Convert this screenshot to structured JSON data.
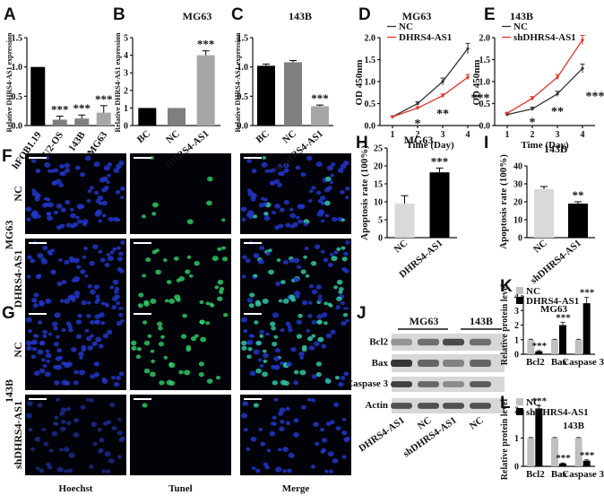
{
  "panels": {
    "A": {
      "letter": "A",
      "chart_data": {
        "type": "bar",
        "title": "",
        "ylabel": "Relative DHRS4-AS1 expression",
        "categories": [
          "hFOB1.19",
          "U2-OS",
          "143B",
          "MG63"
        ],
        "values": [
          1.0,
          0.1,
          0.12,
          0.22
        ],
        "errors": [
          0.0,
          0.06,
          0.06,
          0.12
        ],
        "ylim": [
          0,
          1.5
        ],
        "yticks": [
          "0.0",
          "0.5",
          "1.0",
          "1.5"
        ],
        "colors": [
          "#000000",
          "#7f7f7f",
          "#7f7f7f",
          "#a6a6a6"
        ],
        "sig": [
          "",
          "***",
          "***",
          "***"
        ]
      }
    },
    "B": {
      "letter": "B",
      "chart_data": {
        "type": "bar",
        "title": "MG63",
        "ylabel": "Relative DHRS4-AS1 expression",
        "categories": [
          "BC",
          "NC",
          "DHRS4-AS1"
        ],
        "values": [
          1.0,
          1.0,
          4.0
        ],
        "errors": [
          0.0,
          0.0,
          0.25
        ],
        "ylim": [
          0,
          5
        ],
        "yticks": [
          "0",
          "1",
          "2",
          "3",
          "4",
          "5"
        ],
        "colors": [
          "#000000",
          "#7f7f7f",
          "#a6a6a6"
        ],
        "sig": [
          "",
          "",
          "***"
        ]
      }
    },
    "C": {
      "letter": "C",
      "chart_data": {
        "type": "bar",
        "title": "143B",
        "ylabel": "Relative DHRS4-AS1 expression",
        "categories": [
          "BC",
          "NC",
          "shDHRS4-AS1"
        ],
        "values": [
          1.02,
          1.08,
          0.33
        ],
        "errors": [
          0.03,
          0.03,
          0.02
        ],
        "ylim": [
          0,
          1.5
        ],
        "yticks": [
          "0.0",
          "0.5",
          "1.0",
          "1.5"
        ],
        "colors": [
          "#000000",
          "#7f7f7f",
          "#a6a6a6"
        ],
        "sig": [
          "",
          "",
          "***"
        ]
      }
    },
    "D": {
      "letter": "D",
      "chart_data": {
        "type": "line",
        "title": "MG63",
        "xlabel": "Time (Day)",
        "ylabel": "OD 450nm",
        "x": [
          1,
          2,
          3,
          4
        ],
        "xlim": [
          0.5,
          4.5
        ],
        "ylim": [
          0,
          2
        ],
        "xticks": [
          "1",
          "2",
          "3",
          "4"
        ],
        "yticks": [
          "0.0",
          "0.5",
          "1.0",
          "1.5",
          "2.0"
        ],
        "series": [
          {
            "name": "NC",
            "color": "#333333",
            "values": [
              0.2,
              0.5,
              1.0,
              1.75
            ],
            "errors": [
              0.02,
              0.04,
              0.08,
              0.12
            ]
          },
          {
            "name": "DHRS4-AS1",
            "color": "#e8312a",
            "values": [
              0.2,
              0.4,
              0.68,
              1.1
            ],
            "errors": [
              0.02,
              0.03,
              0.04,
              0.06
            ]
          }
        ],
        "sig": [
          {
            "x": 2,
            "y": 0.12,
            "text": "*"
          },
          {
            "x": 3,
            "y": 0.35,
            "text": "**"
          },
          {
            "x": 4,
            "y": 0.7,
            "text": "***"
          }
        ]
      }
    },
    "E": {
      "letter": "E",
      "chart_data": {
        "type": "line",
        "title": "143B",
        "xlabel": "Time (Day)",
        "ylabel": "OD 450nm",
        "x": [
          1,
          2,
          3,
          4
        ],
        "xlim": [
          0.5,
          4.5
        ],
        "ylim": [
          0,
          2
        ],
        "xticks": [
          "1",
          "2",
          "3",
          "4"
        ],
        "yticks": [
          "0.0",
          "0.5",
          "1.0",
          "1.5",
          "2.0"
        ],
        "series": [
          {
            "name": "NC",
            "color": "#333333",
            "values": [
              0.25,
              0.38,
              0.72,
              1.3
            ],
            "errors": [
              0.02,
              0.04,
              0.06,
              0.1
            ]
          },
          {
            "name": "shDHRS4-AS1",
            "color": "#e8312a",
            "values": [
              0.28,
              0.62,
              1.1,
              1.95
            ],
            "errors": [
              0.02,
              0.04,
              0.06,
              0.1
            ]
          }
        ],
        "sig": [
          {
            "x": 2,
            "y": 0.15,
            "text": "*"
          },
          {
            "x": 3,
            "y": 0.4,
            "text": "**"
          },
          {
            "x": 4,
            "y": 0.75,
            "text": "***"
          }
        ]
      }
    },
    "H": {
      "letter": "H",
      "chart_data": {
        "type": "bar",
        "title": "MG63",
        "ylabel": "Apoptosis rate (100%)",
        "categories": [
          "NC",
          "DHRS4-AS1"
        ],
        "values": [
          9.5,
          18.2
        ],
        "errors": [
          2.2,
          1.2
        ],
        "ylim": [
          0,
          25
        ],
        "yticks": [
          "0",
          "5",
          "10",
          "15",
          "20",
          "25"
        ],
        "colors": [
          "#d9d9d9",
          "#000000"
        ],
        "sig": [
          "",
          "***"
        ]
      }
    },
    "I": {
      "letter": "I",
      "chart_data": {
        "type": "bar",
        "title": "143B",
        "ylabel": "Apoptosis rate (100%)",
        "categories": [
          "NC",
          "shDHRS4-AS1"
        ],
        "values": [
          27,
          19
        ],
        "errors": [
          1.5,
          1.0
        ],
        "ylim": [
          0,
          40
        ],
        "yticks": [
          "0",
          "10",
          "20",
          "30",
          "40"
        ],
        "colors": [
          "#d9d9d9",
          "#000000"
        ],
        "sig": [
          "",
          "**"
        ]
      }
    },
    "K": {
      "letter": "K",
      "chart_data": {
        "type": "bar",
        "title": "MG63",
        "ylabel": "Relative protein level",
        "categories": [
          "Bcl2",
          "Bax",
          "Caspase 3"
        ],
        "series": [
          {
            "name": "NC",
            "color": "#c0c0c0",
            "values": [
              1.0,
              1.0,
              1.0
            ],
            "errors": [
              0.03,
              0.03,
              0.03
            ]
          },
          {
            "name": "DHRS4-AS1",
            "color": "#000000",
            "values": [
              0.2,
              2.0,
              3.5
            ],
            "errors": [
              0.05,
              0.2,
              0.4
            ]
          }
        ],
        "ylim": [
          0,
          4
        ],
        "yticks": [
          "0",
          "1",
          "2",
          "3",
          "4"
        ],
        "sig": [
          "***",
          "***",
          "***"
        ]
      }
    },
    "L": {
      "letter": "L",
      "chart_data": {
        "type": "bar",
        "title": "143B",
        "ylabel": "Relative protein level",
        "categories": [
          "Bcl2",
          "Bax",
          "Caspase 3"
        ],
        "series": [
          {
            "name": "NC",
            "color": "#c0c0c0",
            "values": [
              1.0,
              1.0,
              1.0
            ],
            "errors": [
              0.02,
              0.02,
              0.02
            ]
          },
          {
            "name": "shDHRS4-AS1",
            "color": "#000000",
            "values": [
              2.05,
              0.1,
              0.2
            ],
            "errors": [
              0.1,
              0.02,
              0.03
            ]
          }
        ],
        "ylim": [
          0,
          2
        ],
        "yticks": [
          "0",
          "1",
          "2"
        ],
        "sig": [
          "***",
          "***",
          "***"
        ]
      }
    }
  },
  "microscopy": {
    "F": {
      "letter": "F",
      "cell_line": "MG63",
      "rows": [
        "NC",
        "DHRS4-AS1"
      ]
    },
    "G": {
      "letter": "G",
      "cell_line": "143B",
      "rows": [
        "NC",
        "shDHRS4-AS1"
      ]
    },
    "columns": [
      "Hoechst",
      "Tunel",
      "Merge"
    ]
  },
  "blot": {
    "letter": "J",
    "groups": [
      "MG63",
      "143B"
    ],
    "rows": [
      "Bcl2",
      "Bax",
      "Caspase 3",
      "Actin"
    ],
    "lanes": [
      "DHRS4-AS1",
      "NC",
      "shDHRS4-AS1",
      "NC"
    ]
  }
}
